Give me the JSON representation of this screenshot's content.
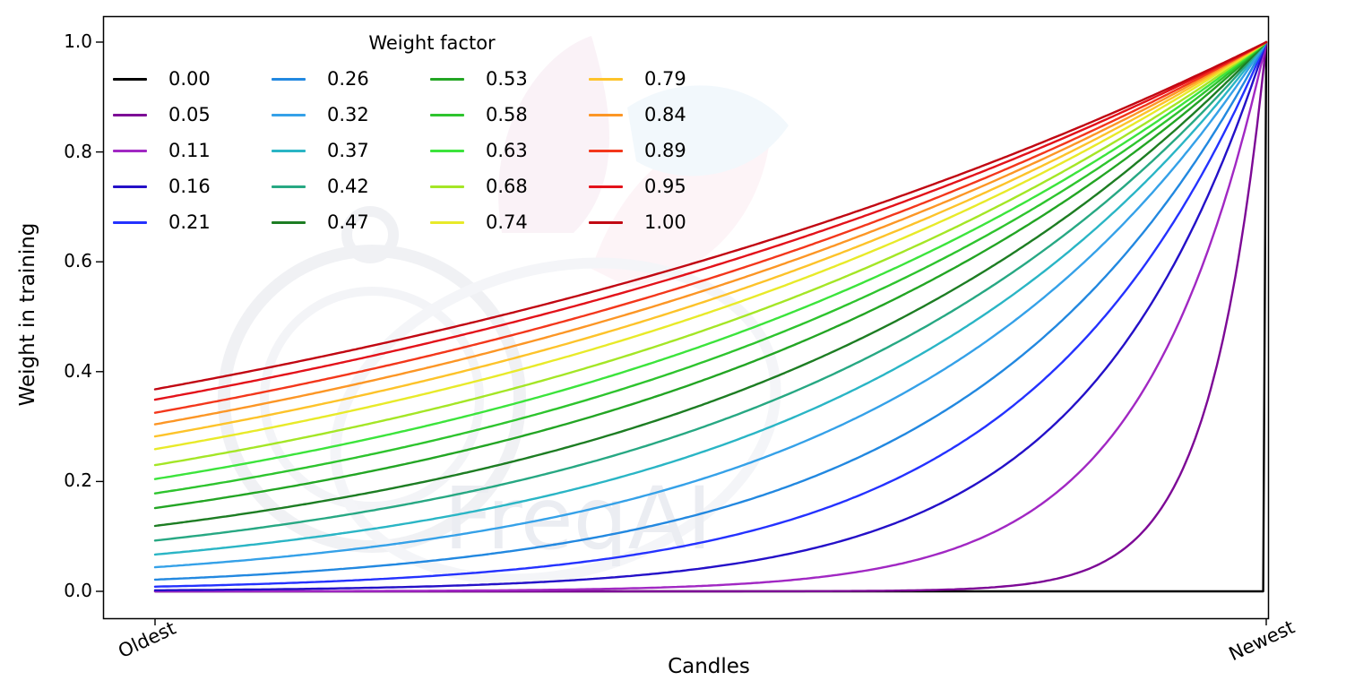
{
  "watermark": {
    "text": "FreqAI"
  },
  "chart_data": {
    "type": "line",
    "title": "",
    "xlabel": "Candles",
    "ylabel": "Weight in training",
    "x_tick_labels": [
      "Oldest",
      "Newest"
    ],
    "y_ticks": [
      "0.0",
      "0.2",
      "0.4",
      "0.6",
      "0.8",
      "1.0"
    ],
    "ylim": [
      0,
      1
    ],
    "grid": false,
    "legend": {
      "title": "Weight factor",
      "position": "upper left",
      "columns": 4,
      "rows": 5
    },
    "formula": "weight = exp(-(1 - x) / weight_factor), x from 0 (oldest) to 1 (newest)",
    "series": [
      {
        "name": "0.00",
        "weight_factor": 0.0,
        "color": "#000000"
      },
      {
        "name": "0.05",
        "weight_factor": 0.05,
        "color": "#7d0996"
      },
      {
        "name": "0.11",
        "weight_factor": 0.11,
        "color": "#a128c3"
      },
      {
        "name": "0.16",
        "weight_factor": 0.16,
        "color": "#2410c8"
      },
      {
        "name": "0.21",
        "weight_factor": 0.21,
        "color": "#2432ff"
      },
      {
        "name": "0.26",
        "weight_factor": 0.26,
        "color": "#2288e0"
      },
      {
        "name": "0.32",
        "weight_factor": 0.32,
        "color": "#35a1e8"
      },
      {
        "name": "0.37",
        "weight_factor": 0.37,
        "color": "#2ab5c5"
      },
      {
        "name": "0.42",
        "weight_factor": 0.42,
        "color": "#27a883"
      },
      {
        "name": "0.47",
        "weight_factor": 0.47,
        "color": "#1d7d23"
      },
      {
        "name": "0.53",
        "weight_factor": 0.53,
        "color": "#23a524"
      },
      {
        "name": "0.58",
        "weight_factor": 0.58,
        "color": "#2ec42e"
      },
      {
        "name": "0.63",
        "weight_factor": 0.63,
        "color": "#3ce43c"
      },
      {
        "name": "0.68",
        "weight_factor": 0.68,
        "color": "#a4e626"
      },
      {
        "name": "0.74",
        "weight_factor": 0.74,
        "color": "#e8ea29"
      },
      {
        "name": "0.79",
        "weight_factor": 0.79,
        "color": "#fdc32a"
      },
      {
        "name": "0.84",
        "weight_factor": 0.84,
        "color": "#fc9625"
      },
      {
        "name": "0.89",
        "weight_factor": 0.89,
        "color": "#f3371b"
      },
      {
        "name": "0.95",
        "weight_factor": 0.95,
        "color": "#e3121a"
      },
      {
        "name": "1.00",
        "weight_factor": 1.0,
        "color": "#c10712"
      }
    ]
  }
}
